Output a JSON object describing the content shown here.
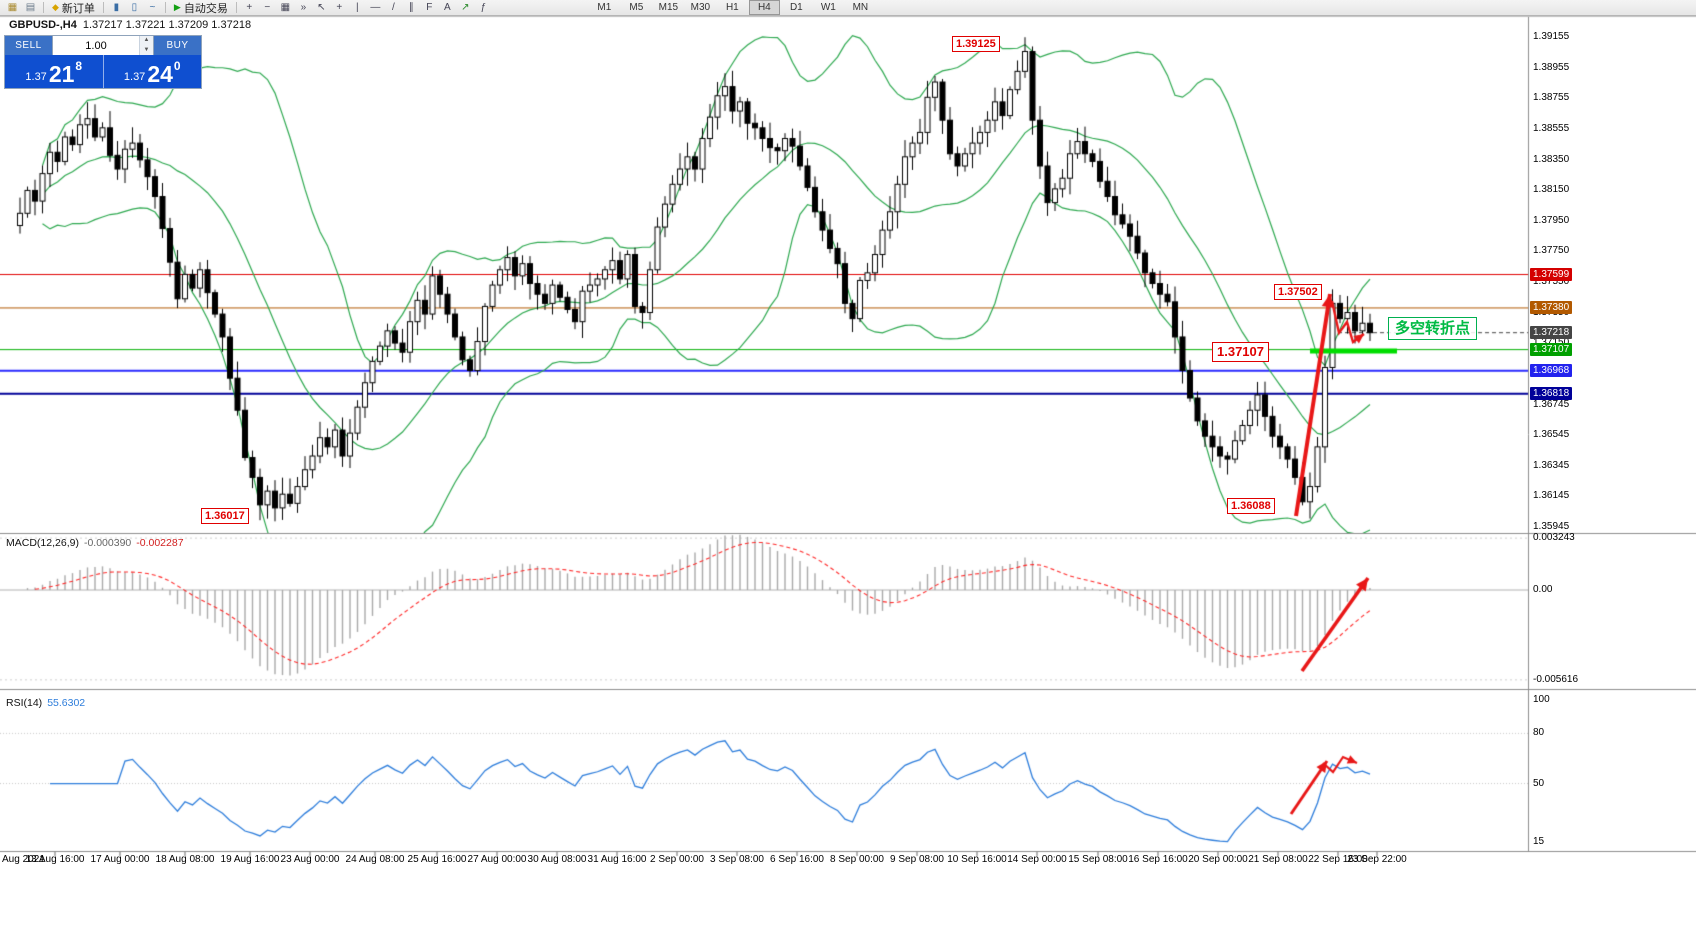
{
  "toolbar": {
    "left_icons": [
      {
        "name": "new-chart-icon",
        "glyph": "▦",
        "color": "#a98a2f"
      },
      {
        "name": "chart-profiles-icon",
        "glyph": "▤",
        "color": "#6a7a8a"
      }
    ],
    "new_order": {
      "label": "新订单",
      "icon_glyph": "◆"
    },
    "mid_icons": [
      {
        "name": "bar-chart-icon",
        "glyph": "▮",
        "color": "#3a6ea5"
      },
      {
        "name": "candlestick-chart-icon",
        "glyph": "▯",
        "color": "#3a6ea5"
      },
      {
        "name": "line-chart-icon",
        "glyph": "~",
        "color": "#3a6ea5"
      }
    ],
    "autotrading": {
      "label": "自动交易",
      "icon_glyph": "▶"
    },
    "tool_icons": [
      {
        "name": "zoom-in-icon",
        "glyph": "+",
        "color": "#445"
      },
      {
        "name": "zoom-out-icon",
        "glyph": "−",
        "color": "#445"
      },
      {
        "name": "tile-windows-icon",
        "glyph": "▦",
        "color": "#445"
      },
      {
        "name": "auto-scroll-icon",
        "glyph": "»",
        "color": "#445"
      },
      {
        "name": "cursor-icon",
        "glyph": "↖",
        "color": "#445"
      },
      {
        "name": "crosshair-icon",
        "glyph": "+",
        "color": "#445"
      },
      {
        "name": "vertical-line-icon",
        "glyph": "|",
        "color": "#445"
      },
      {
        "name": "horizontal-line-icon",
        "glyph": "—",
        "color": "#445"
      },
      {
        "name": "trendline-icon",
        "glyph": "/",
        "color": "#445"
      },
      {
        "name": "channel-icon",
        "glyph": "∥",
        "color": "#445"
      },
      {
        "name": "fibonacci-icon",
        "glyph": "F",
        "color": "#445"
      },
      {
        "name": "text-icon",
        "glyph": "A",
        "color": "#445"
      },
      {
        "name": "arrows-icon",
        "glyph": "↗",
        "color": "#2a8a2a"
      },
      {
        "name": "indicators-icon",
        "glyph": "ƒ",
        "color": "#445"
      }
    ],
    "timeframes": [
      "M1",
      "M5",
      "M15",
      "M30",
      "H1",
      "H4",
      "D1",
      "W1",
      "MN"
    ],
    "active_timeframe": "H4"
  },
  "header": {
    "symbol": "GBPUSD-,H4",
    "ohlc": "1.37217 1.37221 1.37209 1.37218"
  },
  "trade_panel": {
    "sell_label": "SELL",
    "buy_label": "BUY",
    "volume": "1.00",
    "sell": {
      "prefix": "1.37",
      "big": "21",
      "sup": "8"
    },
    "buy": {
      "prefix": "1.37",
      "big": "24",
      "sup": "0"
    }
  },
  "price_axis": {
    "ticks": [
      {
        "text": "1.39155",
        "price": 1.39155
      },
      {
        "text": "1.38955",
        "price": 1.38955
      },
      {
        "text": "1.38755",
        "price": 1.38755
      },
      {
        "text": "1.38555",
        "price": 1.38555
      },
      {
        "text": "1.38350",
        "price": 1.3835
      },
      {
        "text": "1.38150",
        "price": 1.3815
      },
      {
        "text": "1.37950",
        "price": 1.3795
      },
      {
        "text": "1.37750",
        "price": 1.3775
      },
      {
        "text": "1.37550",
        "price": 1.3755
      },
      {
        "text": "1.37350",
        "price": 1.3735
      },
      {
        "text": "1.37150",
        "price": 1.3715
      },
      {
        "text": "1.36945",
        "price": 1.36945
      },
      {
        "text": "1.36745",
        "price": 1.36745
      },
      {
        "text": "1.36545",
        "price": 1.36545
      },
      {
        "text": "1.36345",
        "price": 1.36345
      },
      {
        "text": "1.36145",
        "price": 1.36145
      },
      {
        "text": "1.35945",
        "price": 1.35945
      }
    ],
    "level_boxes": [
      {
        "text": "1.37599",
        "price": 1.37599,
        "color": "#d40000"
      },
      {
        "text": "1.37380",
        "price": 1.3738,
        "color": "#b25900"
      },
      {
        "text": "1.37218",
        "price": 1.37218,
        "color": "#454545"
      },
      {
        "text": "1.37107",
        "price": 1.37107,
        "color": "#00a000"
      },
      {
        "text": "1.36968",
        "price": 1.36968,
        "color": "#2222ee"
      },
      {
        "text": "1.36818",
        "price": 1.36818,
        "color": "#000099"
      }
    ]
  },
  "levels": [
    {
      "price": 1.37599,
      "color": "#e00000",
      "lw": 1
    },
    {
      "price": 1.3738,
      "color": "#b25900",
      "lw": 1
    },
    {
      "price": 1.37107,
      "color": "#00b000",
      "lw": 1
    },
    {
      "price": 1.36968,
      "color": "#2a2aff",
      "lw": 2
    },
    {
      "price": 1.36818,
      "color": "#000099",
      "lw": 2
    }
  ],
  "macd_pane": {
    "label": "MACD(12,26,9)",
    "value1": "-0.000390",
    "value2": "-0.002287",
    "axis": [
      {
        "text": "0.003243",
        "value": 0.003243
      },
      {
        "text": "0.00",
        "value": 0
      },
      {
        "text": "-0.005616",
        "value": -0.005616
      }
    ]
  },
  "rsi_pane": {
    "label": "RSI(14)",
    "value": "55.6302",
    "axis": [
      {
        "text": "100",
        "value": 100
      },
      {
        "text": "80",
        "value": 80
      },
      {
        "text": "50",
        "value": 50
      },
      {
        "text": "15",
        "value": 15
      }
    ],
    "level_lines": [
      80,
      50
    ]
  },
  "time_axis": {
    "labels": [
      "Aug 2021",
      "13 Aug 16:00",
      "17 Aug 00:00",
      "18 Aug 08:00",
      "19 Aug 16:00",
      "23 Aug 00:00",
      "24 Aug 08:00",
      "25 Aug 16:00",
      "27 Aug 00:00",
      "30 Aug 08:00",
      "31 Aug 16:00",
      "2 Sep 00:00",
      "3 Sep 08:00",
      "6 Sep 16:00",
      "8 Sep 00:00",
      "9 Sep 08:00",
      "10 Sep 16:00",
      "14 Sep 00:00",
      "15 Sep 08:00",
      "16 Sep 16:00",
      "20 Sep 00:00",
      "21 Sep 08:00",
      "22 Sep 16:00",
      "23 Sep 22:00"
    ]
  },
  "annotations": {
    "swing_high": "1.39125",
    "pullback_high": "1.37502",
    "support_level": "1.37107",
    "recent_low": "1.36088",
    "august_low": "1.36017",
    "turning_point": "多空转折点"
  },
  "colors": {
    "candle_up": "#ffffff",
    "candle_down": "#000000",
    "candle_border": "#000000",
    "bollinger": "#2da84f",
    "macd_hist": "#a9a9a9",
    "macd_signal": "#ff2a2a",
    "rsi_line": "#2d7ddb",
    "arrow": "#e81717",
    "highlight_green": "#00dd00",
    "panel_blue": "#0f4fd0",
    "button_blue": "#3a71c6"
  },
  "chart_data": {
    "type": "candlestick",
    "symbol": "GBPUSD-",
    "timeframe": "H4",
    "price_range": [
      1.35945,
      1.39155
    ],
    "first_open": 1.3792,
    "closes": [
      1.38,
      1.3815,
      1.3808,
      1.3826,
      1.384,
      1.3834,
      1.385,
      1.3845,
      1.3858,
      1.3862,
      1.385,
      1.3856,
      1.3838,
      1.3829,
      1.3842,
      1.3846,
      1.3835,
      1.3824,
      1.3811,
      1.379,
      1.3768,
      1.3744,
      1.376,
      1.3751,
      1.3763,
      1.3748,
      1.3734,
      1.3719,
      1.3692,
      1.3671,
      1.364,
      1.3627,
      1.3609,
      1.3618,
      1.3607,
      1.3616,
      1.361,
      1.3621,
      1.3632,
      1.3641,
      1.3653,
      1.3647,
      1.3658,
      1.3641,
      1.3656,
      1.3673,
      1.3689,
      1.3703,
      1.3713,
      1.3723,
      1.3715,
      1.3709,
      1.3729,
      1.3743,
      1.3734,
      1.3759,
      1.3747,
      1.3734,
      1.3719,
      1.3704,
      1.3697,
      1.3716,
      1.3739,
      1.3753,
      1.3763,
      1.3771,
      1.3759,
      1.3767,
      1.3754,
      1.3747,
      1.3741,
      1.3753,
      1.3745,
      1.3737,
      1.3729,
      1.3749,
      1.3753,
      1.3757,
      1.3763,
      1.3769,
      1.3757,
      1.3773,
      1.3739,
      1.3735,
      1.3763,
      1.3791,
      1.3806,
      1.3819,
      1.3829,
      1.3837,
      1.3829,
      1.3849,
      1.3863,
      1.3877,
      1.3883,
      1.3867,
      1.3873,
      1.3859,
      1.3856,
      1.3849,
      1.3843,
      1.3841,
      1.3849,
      1.3844,
      1.3831,
      1.3817,
      1.3801,
      1.3789,
      1.3777,
      1.3767,
      1.3741,
      1.3731,
      1.3756,
      1.3761,
      1.3773,
      1.3789,
      1.3801,
      1.3819,
      1.3837,
      1.3846,
      1.3853,
      1.3876,
      1.3886,
      1.3861,
      1.3839,
      1.3831,
      1.3839,
      1.3846,
      1.3853,
      1.3861,
      1.3873,
      1.3864,
      1.3881,
      1.3893,
      1.3906,
      1.3861,
      1.3831,
      1.3807,
      1.3816,
      1.3823,
      1.3839,
      1.3847,
      1.3839,
      1.3834,
      1.3821,
      1.3811,
      1.3799,
      1.3793,
      1.3785,
      1.3774,
      1.3761,
      1.3754,
      1.3747,
      1.3742,
      1.3719,
      1.3697,
      1.3679,
      1.3664,
      1.3654,
      1.3647,
      1.3641,
      1.3639,
      1.3651,
      1.3661,
      1.3671,
      1.3681,
      1.3667,
      1.3654,
      1.3647,
      1.3639,
      1.3627,
      1.3611,
      1.3621,
      1.3647,
      1.3699,
      1.3741,
      1.3731,
      1.3735,
      1.3723,
      1.3728,
      1.37218
    ],
    "extremes": {
      "9": {
        "h": 1.387
      },
      "32": {
        "l": 1.36017
      },
      "94": {
        "h": 1.389
      },
      "122": {
        "h": 1.389
      },
      "134": {
        "h": 1.39125
      },
      "171": {
        "l": 1.36088
      },
      "175": {
        "h": 1.37502
      }
    },
    "indicators": {
      "bollinger": {
        "period": 20,
        "deviation": 2
      },
      "macd": {
        "fast": 12,
        "slow": 26,
        "signal": 9
      },
      "rsi": {
        "period": 14
      }
    },
    "key_levels": {
      "resistance": 1.37599,
      "mid_level": 1.3738,
      "current_bid": 1.37218,
      "support": 1.37107,
      "blue_level_1": 1.36968,
      "blue_level_2": 1.36818,
      "swing_high": 1.39125,
      "pullback_high": 1.37502,
      "recent_low": 1.36088,
      "august_low": 1.36017
    }
  }
}
